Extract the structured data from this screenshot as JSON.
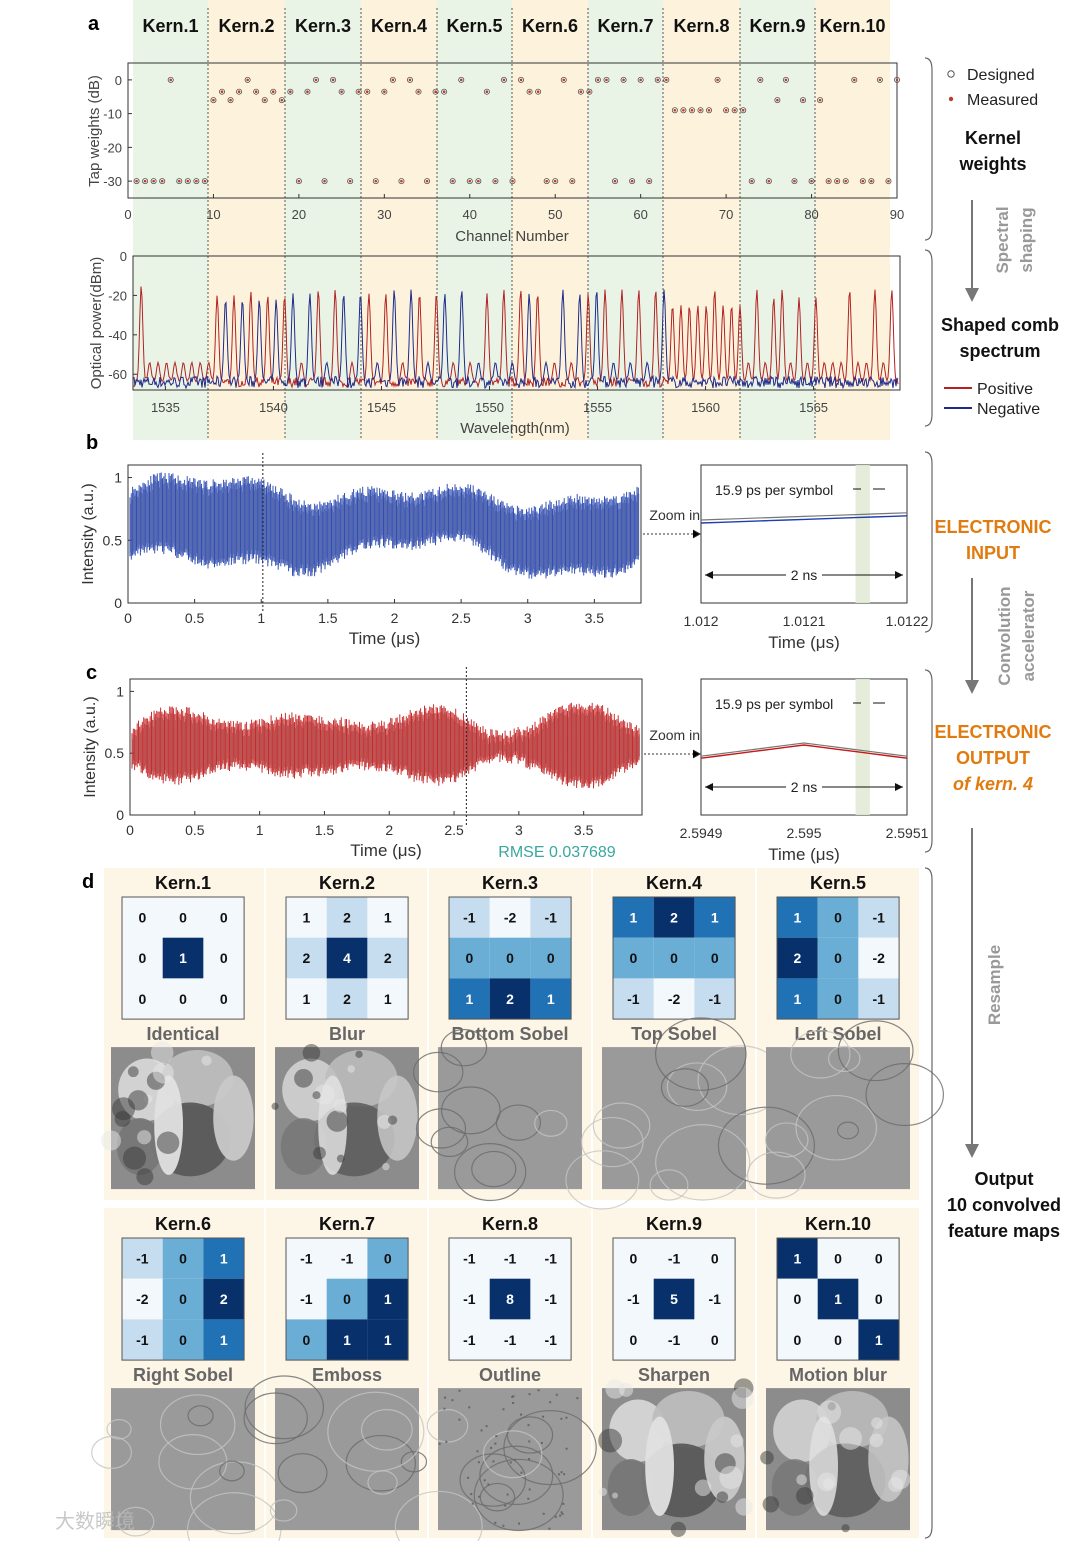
{
  "panel_labels": {
    "a": "a",
    "b": "b",
    "c": "c",
    "d": "d"
  },
  "kernel_headers": [
    "Kern.1",
    "Kern.2",
    "Kern.3",
    "Kern.4",
    "Kern.5",
    "Kern.6",
    "Kern.7",
    "Kern.8",
    "Kern.9",
    "Kern.10"
  ],
  "side_labels": {
    "designed": "Designed",
    "measured": "Measured",
    "kernel_weights": [
      "Kernel",
      "weights"
    ],
    "spectral_shaping": [
      "Spectral",
      "shaping"
    ],
    "shaped_comb": [
      "Shaped comb",
      "spectrum"
    ],
    "positive": "Positive",
    "negative": "Negative",
    "electronic_input": [
      "ELECTRONIC",
      "INPUT"
    ],
    "convolution_accelerator": [
      "Convolution",
      "accelerator"
    ],
    "electronic_output": [
      "ELECTRONIC",
      "OUTPUT"
    ],
    "of_kern4": "of kern. 4",
    "resample": "Resample",
    "output": [
      "Output",
      "10 convolved",
      "feature maps"
    ]
  },
  "colors": {
    "designed": "#555555",
    "measured": "#c0392b",
    "positive": "#b22222",
    "negative": "#1f2a8a",
    "input_signal": "#1f3fb0",
    "output_signal": "#c41a1a",
    "orange_label": "#e07b10",
    "rmse": "#3aa6a0",
    "band_green": "#eaf4e6",
    "band_yellow": "#fdf3dc"
  },
  "watermark": "大数瞬境",
  "chart_data": [
    {
      "id": "tap_weights",
      "type": "scatter",
      "xlabel": "Channel Number",
      "ylabel": "Tap weights (dB)",
      "xlim": [
        0,
        90
      ],
      "ylim": [
        -35,
        5
      ],
      "xticks": [
        0,
        10,
        20,
        30,
        40,
        50,
        60,
        70,
        80,
        90
      ],
      "yticks": [
        0,
        -10,
        -20,
        -30
      ],
      "series": [
        {
          "name": "Designed",
          "marker": "open-circle"
        },
        {
          "name": "Measured",
          "marker": "dot"
        }
      ],
      "points": [
        [
          1,
          -30
        ],
        [
          2,
          -30
        ],
        [
          3,
          -30
        ],
        [
          4,
          -30
        ],
        [
          5,
          0
        ],
        [
          6,
          -30
        ],
        [
          7,
          -30
        ],
        [
          8,
          -30
        ],
        [
          9,
          -30
        ],
        [
          10,
          -6
        ],
        [
          11,
          -3.5
        ],
        [
          12,
          -6
        ],
        [
          13,
          -3.5
        ],
        [
          14,
          0
        ],
        [
          15,
          -3.5
        ],
        [
          16,
          -6
        ],
        [
          17,
          -3.5
        ],
        [
          18,
          -6
        ],
        [
          19,
          -3.5
        ],
        [
          20,
          -30
        ],
        [
          21,
          -3.5
        ],
        [
          22,
          0
        ],
        [
          23,
          -30
        ],
        [
          24,
          0
        ],
        [
          25,
          -3.5
        ],
        [
          26,
          -30
        ],
        [
          27,
          -3.5
        ],
        [
          28,
          -3.5
        ],
        [
          29,
          -30
        ],
        [
          30,
          -3.5
        ],
        [
          31,
          0
        ],
        [
          32,
          -30
        ],
        [
          33,
          0
        ],
        [
          34,
          -3.5
        ],
        [
          35,
          -30
        ],
        [
          36,
          -3.5
        ],
        [
          37,
          -3.5
        ],
        [
          38,
          -30
        ],
        [
          39,
          0
        ],
        [
          40,
          -30
        ],
        [
          41,
          -30
        ],
        [
          42,
          -3.5
        ],
        [
          43,
          -30
        ],
        [
          44,
          0
        ],
        [
          45,
          -30
        ],
        [
          46,
          0
        ],
        [
          47,
          -3.5
        ],
        [
          48,
          -3.5
        ],
        [
          49,
          -30
        ],
        [
          50,
          -30
        ],
        [
          51,
          0
        ],
        [
          52,
          -30
        ],
        [
          53,
          -3.5
        ],
        [
          54,
          -3.5
        ],
        [
          55,
          0
        ],
        [
          56,
          0
        ],
        [
          57,
          -30
        ],
        [
          58,
          0
        ],
        [
          59,
          -30
        ],
        [
          60,
          0
        ],
        [
          61,
          -30
        ],
        [
          62,
          0
        ],
        [
          63,
          0
        ],
        [
          64,
          -9
        ],
        [
          65,
          -9
        ],
        [
          66,
          -9
        ],
        [
          67,
          -9
        ],
        [
          68,
          -9
        ],
        [
          69,
          0
        ],
        [
          70,
          -9
        ],
        [
          71,
          -9
        ],
        [
          72,
          -9
        ],
        [
          73,
          -30
        ],
        [
          74,
          0
        ],
        [
          75,
          -30
        ],
        [
          76,
          -6
        ],
        [
          77,
          0
        ],
        [
          78,
          -30
        ],
        [
          79,
          -6
        ],
        [
          80,
          -30
        ],
        [
          81,
          -6
        ],
        [
          82,
          -30
        ],
        [
          83,
          -30
        ],
        [
          84,
          -30
        ],
        [
          85,
          0
        ],
        [
          86,
          -30
        ],
        [
          87,
          -30
        ],
        [
          88,
          0
        ],
        [
          89,
          -30
        ],
        [
          90,
          0
        ]
      ]
    },
    {
      "id": "comb_spectrum",
      "type": "line",
      "xlabel": "Wavelength(nm)",
      "ylabel": "Optical power(dBm)",
      "xlim": [
        1533.5,
        1569
      ],
      "ylim": [
        -68,
        0
      ],
      "xticks": [
        1535,
        1540,
        1545,
        1550,
        1555,
        1560,
        1565
      ],
      "yticks": [
        0,
        -20,
        -40,
        -60
      ],
      "series": [
        {
          "name": "Positive"
        },
        {
          "name": "Negative"
        }
      ],
      "noise_floor": -64,
      "peak_levels": [
        -15,
        -54,
        -54,
        -54,
        -54,
        -54,
        -54,
        -54,
        -54,
        -20,
        -22,
        -20,
        -22,
        -18,
        -22,
        -20,
        -22,
        -20,
        -19,
        -54,
        -19,
        -17,
        -54,
        -17,
        -19,
        -54,
        -19,
        -19,
        -54,
        -19,
        -17,
        -54,
        -17,
        -19,
        -54,
        -19,
        -19,
        -54,
        -17,
        -54,
        -54,
        -19,
        -54,
        -17,
        -54,
        -17,
        -19,
        -19,
        -54,
        -54,
        -17,
        -54,
        -19,
        -19,
        -17,
        -17,
        -54,
        -17,
        -54,
        -17,
        -54,
        -17,
        -17,
        -25,
        -25,
        -25,
        -25,
        -25,
        -17,
        -25,
        -25,
        -25,
        -54,
        -17,
        -54,
        -21,
        -17,
        -54,
        -21,
        -54,
        -21,
        -54,
        -54,
        -54,
        -17,
        -54,
        -54,
        -17,
        -54,
        -17
      ]
    },
    {
      "id": "electronic_input",
      "type": "line",
      "xlabel": "Time (μs)",
      "ylabel": "Intensity (a.u.)",
      "xlim": [
        0,
        3.85
      ],
      "ylim": [
        0,
        1.1
      ],
      "xticks": [
        0,
        0.5,
        1,
        1.5,
        2,
        2.5,
        3,
        3.5
      ],
      "yticks": [
        0,
        0.5,
        1
      ],
      "marker_time": 1.012
    },
    {
      "id": "input_zoom",
      "type": "line",
      "xlabel": "Time (μs)",
      "xlim": [
        1.012,
        1.0122
      ],
      "xtick_labels": [
        "1.012",
        "1.0121",
        "1.0122"
      ],
      "annotation_symbol": "15.9 ps per symbol",
      "annotation_span": "2 ns",
      "zoom_label": "Zoom in"
    },
    {
      "id": "electronic_output",
      "type": "line",
      "xlabel": "Time (μs)",
      "ylabel": "Intensity (a.u.)",
      "xlim": [
        0,
        3.95
      ],
      "ylim": [
        0,
        1.1
      ],
      "xticks": [
        0,
        0.5,
        1,
        1.5,
        2,
        2.5,
        3,
        3.5
      ],
      "yticks": [
        0,
        0.5,
        1
      ],
      "marker_time": 2.595,
      "rmse": "RMSE 0.037689"
    },
    {
      "id": "output_zoom",
      "type": "line",
      "xlabel": "Time (μs)",
      "xlim": [
        2.5949,
        2.5951
      ],
      "xtick_labels": [
        "2.5949",
        "2.595",
        "2.5951"
      ],
      "annotation_symbol": "15.9 ps per symbol",
      "annotation_span": "2 ns",
      "zoom_label": "Zoom in"
    },
    {
      "id": "kernels",
      "type": "heatmap",
      "kernels": [
        {
          "title": "Kern.1",
          "name": "Identical",
          "matrix": [
            [
              0,
              0,
              0
            ],
            [
              0,
              1,
              0
            ],
            [
              0,
              0,
              0
            ]
          ]
        },
        {
          "title": "Kern.2",
          "name": "Blur",
          "matrix": [
            [
              1,
              2,
              1
            ],
            [
              2,
              4,
              2
            ],
            [
              1,
              2,
              1
            ]
          ]
        },
        {
          "title": "Kern.3",
          "name": "Bottom Sobel",
          "matrix": [
            [
              -1,
              -2,
              -1
            ],
            [
              0,
              0,
              0
            ],
            [
              1,
              2,
              1
            ]
          ]
        },
        {
          "title": "Kern.4",
          "name": "Top Sobel",
          "matrix": [
            [
              1,
              2,
              1
            ],
            [
              0,
              0,
              0
            ],
            [
              -1,
              -2,
              -1
            ]
          ]
        },
        {
          "title": "Kern.5",
          "name": "Left Sobel",
          "matrix": [
            [
              1,
              0,
              -1
            ],
            [
              2,
              0,
              -2
            ],
            [
              1,
              0,
              -1
            ]
          ]
        },
        {
          "title": "Kern.6",
          "name": "Right Sobel",
          "matrix": [
            [
              -1,
              0,
              1
            ],
            [
              -2,
              0,
              2
            ],
            [
              -1,
              0,
              1
            ]
          ]
        },
        {
          "title": "Kern.7",
          "name": "Emboss",
          "matrix": [
            [
              -1,
              -1,
              0
            ],
            [
              -1,
              0,
              1
            ],
            [
              0,
              1,
              1
            ]
          ]
        },
        {
          "title": "Kern.8",
          "name": "Outline",
          "matrix": [
            [
              -1,
              -1,
              -1
            ],
            [
              -1,
              8,
              -1
            ],
            [
              -1,
              -1,
              -1
            ]
          ]
        },
        {
          "title": "Kern.9",
          "name": "Sharpen",
          "matrix": [
            [
              0,
              -1,
              0
            ],
            [
              -1,
              5,
              -1
            ],
            [
              0,
              -1,
              0
            ]
          ]
        },
        {
          "title": "Kern.10",
          "name": "Motion blur",
          "matrix": [
            [
              1,
              0,
              0
            ],
            [
              0,
              1,
              0
            ],
            [
              0,
              0,
              1
            ]
          ]
        }
      ]
    }
  ]
}
